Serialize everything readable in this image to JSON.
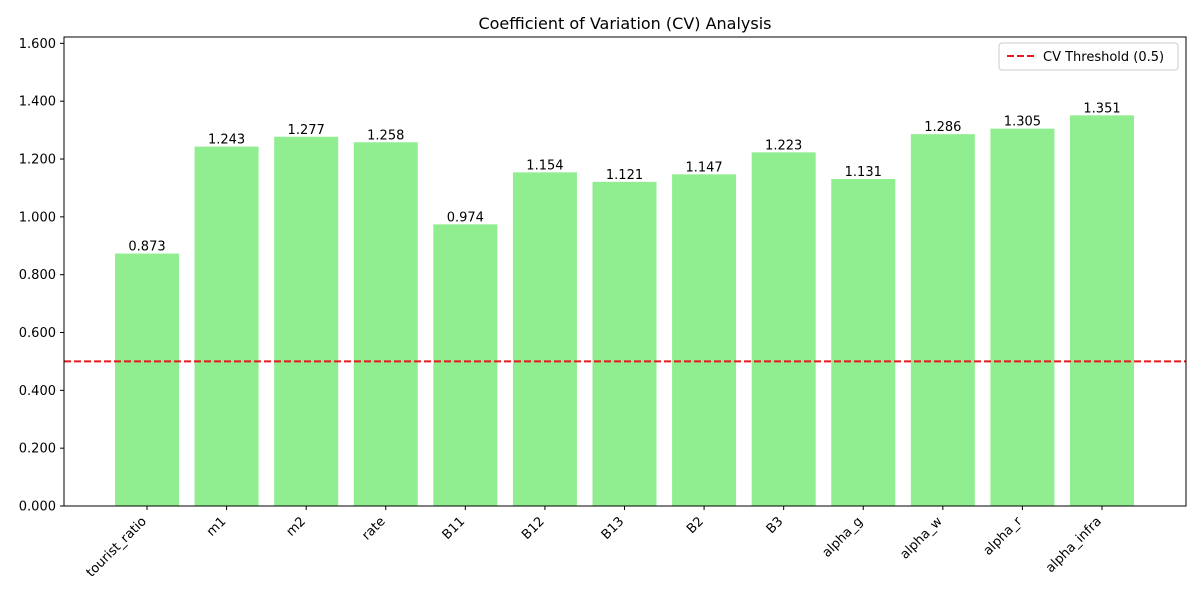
{
  "chart_data": {
    "type": "bar",
    "title": "Coefficient of Variation (CV) Analysis",
    "xlabel": "",
    "ylabel": "",
    "categories": [
      "tourist_ratio",
      "m1",
      "m2",
      "rate",
      "B11",
      "B12",
      "B13",
      "B2",
      "B3",
      "alpha_g",
      "alpha_w",
      "alpha_r",
      "alpha_infra"
    ],
    "values": [
      0.873,
      1.243,
      1.277,
      1.258,
      0.974,
      1.154,
      1.121,
      1.147,
      1.223,
      1.131,
      1.286,
      1.305,
      1.351
    ],
    "value_labels": [
      "0.873",
      "1.243",
      "1.277",
      "1.258",
      "0.974",
      "1.154",
      "1.121",
      "1.147",
      "1.223",
      "1.131",
      "1.286",
      "1.305",
      "1.351"
    ],
    "ylim": [
      0,
      1.622
    ],
    "yticks": [
      0,
      0.2,
      0.4,
      0.6,
      0.8,
      1.0,
      1.2,
      1.4,
      1.6
    ],
    "ytick_labels": [
      "0.000",
      "0.200",
      "0.400",
      "0.600",
      "0.800",
      "1.000",
      "1.200",
      "1.400",
      "1.600"
    ],
    "threshold": {
      "value": 0.5,
      "label": "CV Threshold (0.5)",
      "style": "dashed"
    },
    "legend": {
      "position": "top-right",
      "entries": [
        "CV Threshold (0.5)"
      ]
    },
    "grid": false,
    "colors": {
      "bar": "#90ee90",
      "threshold": "#e41a1c",
      "axis": "#000000"
    }
  }
}
